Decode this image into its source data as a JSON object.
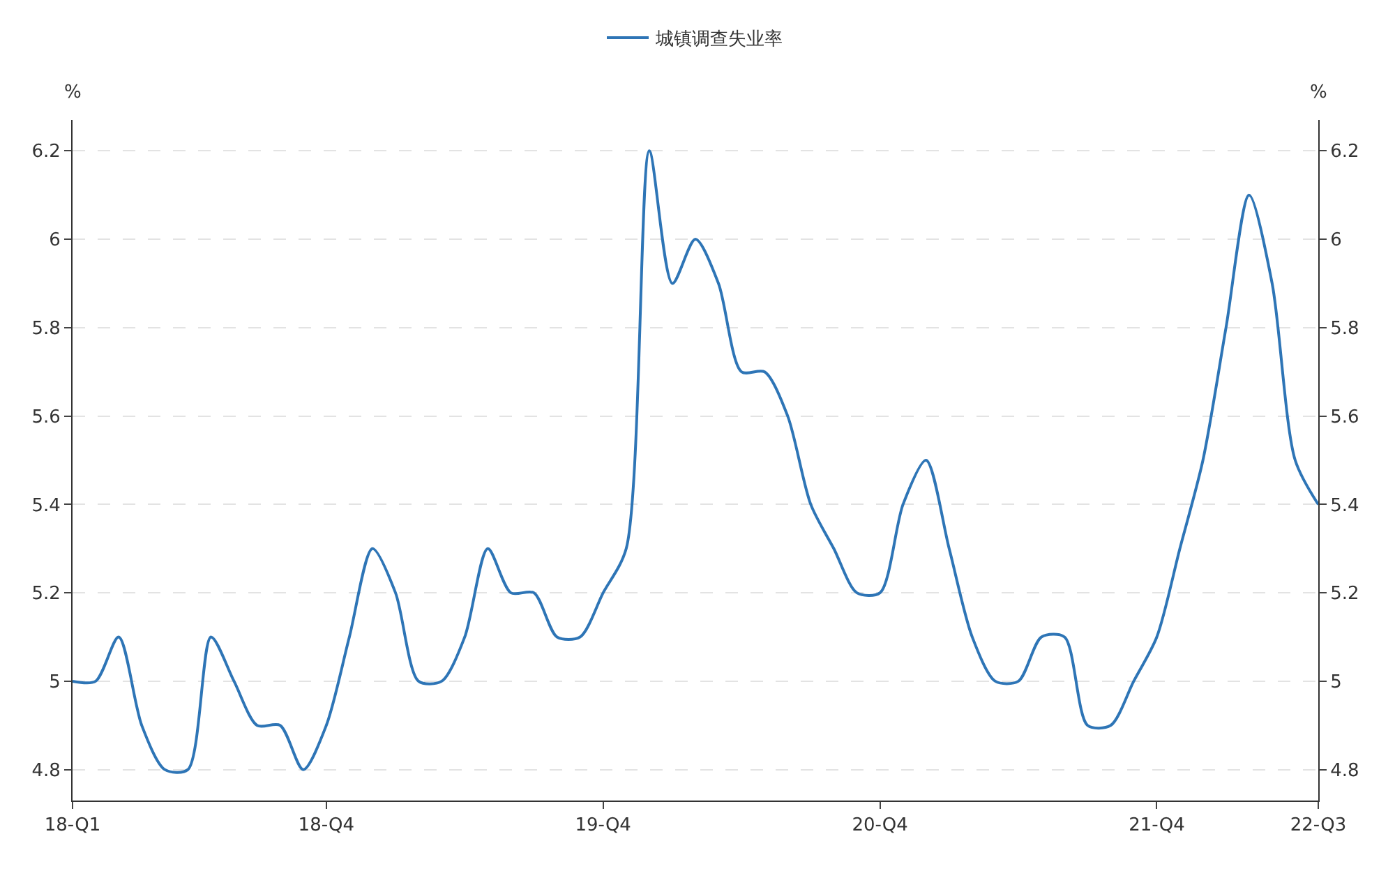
{
  "chart_data": {
    "type": "line",
    "categories": [
      "18-Q1",
      null,
      null,
      null,
      null,
      null,
      null,
      null,
      null,
      null,
      null,
      "18-Q4",
      null,
      null,
      null,
      null,
      null,
      null,
      null,
      null,
      null,
      null,
      null,
      "19-Q4",
      null,
      null,
      null,
      null,
      null,
      null,
      null,
      null,
      null,
      null,
      null,
      "20-Q4",
      null,
      null,
      null,
      null,
      null,
      null,
      null,
      null,
      null,
      null,
      null,
      "21-Q4",
      null,
      null,
      null,
      null,
      null,
      null,
      "22-Q3"
    ],
    "series": [
      {
        "name": "城镇调查失业率",
        "color": "#2e75b6",
        "values": [
          5.0,
          5.0,
          5.1,
          4.9,
          4.8,
          4.8,
          5.1,
          5.0,
          4.9,
          4.9,
          4.8,
          4.9,
          5.1,
          5.3,
          5.2,
          5.0,
          5.0,
          5.1,
          5.3,
          5.2,
          5.2,
          5.1,
          5.1,
          5.2,
          5.3,
          6.2,
          5.9,
          6.0,
          5.9,
          5.7,
          5.7,
          5.6,
          5.4,
          5.3,
          5.2,
          5.2,
          5.4,
          5.5,
          5.3,
          5.1,
          5.0,
          5.0,
          5.1,
          5.1,
          4.9,
          4.9,
          5.0,
          5.1,
          5.3,
          5.5,
          5.8,
          6.1,
          5.9,
          5.5,
          5.4
        ]
      }
    ],
    "ylabel": "%",
    "y2label": "%",
    "ylim": [
      4.73,
      6.27
    ],
    "yticks": [
      4.8,
      5,
      5.2,
      5.4,
      5.6,
      5.8,
      6,
      6.2
    ],
    "y2lim": [
      4.73,
      6.27
    ],
    "y2ticks": [
      4.8,
      5,
      5.2,
      5.4,
      5.6,
      5.8,
      6,
      6.2
    ],
    "grid": "y",
    "legend": "top",
    "marker": "none",
    "line_style": "solid"
  }
}
